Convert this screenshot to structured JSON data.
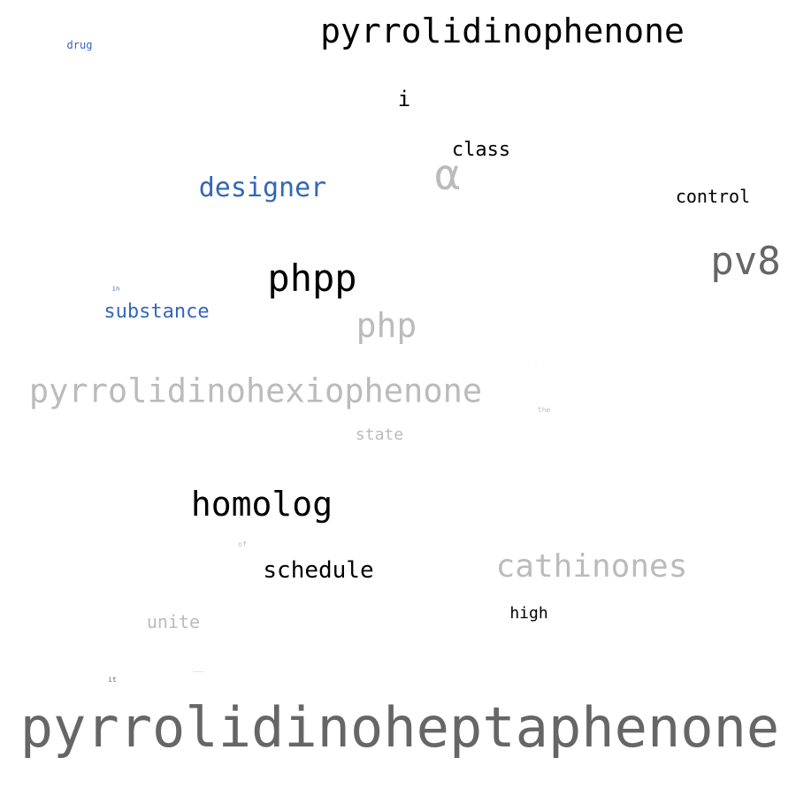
{
  "palette": {
    "black": "#000000",
    "dark_gray": "#666666",
    "light_gray": "#bbbbbb",
    "blue": "#3366bb"
  },
  "words": [
    {
      "name": "word-pyrrolidinophenone",
      "text": "pyrrolidinophenone",
      "color": "black"
    },
    {
      "name": "word-drug",
      "text": "drug",
      "color": "blue"
    },
    {
      "name": "word-i",
      "text": "i",
      "color": "black"
    },
    {
      "name": "word-class",
      "text": "class",
      "color": "black"
    },
    {
      "name": "word-alpha",
      "text": "α",
      "color": "light_gray"
    },
    {
      "name": "word-designer",
      "text": "designer",
      "color": "blue"
    },
    {
      "name": "word-control",
      "text": "control",
      "color": "black"
    },
    {
      "name": "word-pv8",
      "text": "pv8",
      "color": "dark_gray"
    },
    {
      "name": "word-phpp",
      "text": "phpp",
      "color": "black"
    },
    {
      "name": "word-in",
      "text": "in",
      "color": "blue"
    },
    {
      "name": "word-substance",
      "text": "substance",
      "color": "blue"
    },
    {
      "name": "word-php",
      "text": "php",
      "color": "light_gray"
    },
    {
      "name": "word-dot",
      "text": "·",
      "color": "light_gray"
    },
    {
      "name": "word-pyrrolidinohexiophenone",
      "text": "pyrrolidinohexiophenone",
      "color": "light_gray"
    },
    {
      "name": "word-the",
      "text": "the",
      "color": "light_gray"
    },
    {
      "name": "word-state",
      "text": "state",
      "color": "light_gray"
    },
    {
      "name": "word-homolog",
      "text": "homolog",
      "color": "black"
    },
    {
      "name": "word-of",
      "text": "of",
      "color": "light_gray"
    },
    {
      "name": "word-schedule",
      "text": "schedule",
      "color": "black"
    },
    {
      "name": "word-cathinones",
      "text": "cathinones",
      "color": "light_gray"
    },
    {
      "name": "word-high",
      "text": "high",
      "color": "black"
    },
    {
      "name": "word-unite",
      "text": "unite",
      "color": "light_gray"
    },
    {
      "name": "word-it",
      "text": "it",
      "color": "dark_gray"
    },
    {
      "name": "word-tiny",
      "text": "~~~~~",
      "color": "light_gray"
    },
    {
      "name": "word-pyrrolidinoheptaphenone",
      "text": "pyrrolidinoheptaphenone",
      "color": "dark_gray"
    }
  ]
}
